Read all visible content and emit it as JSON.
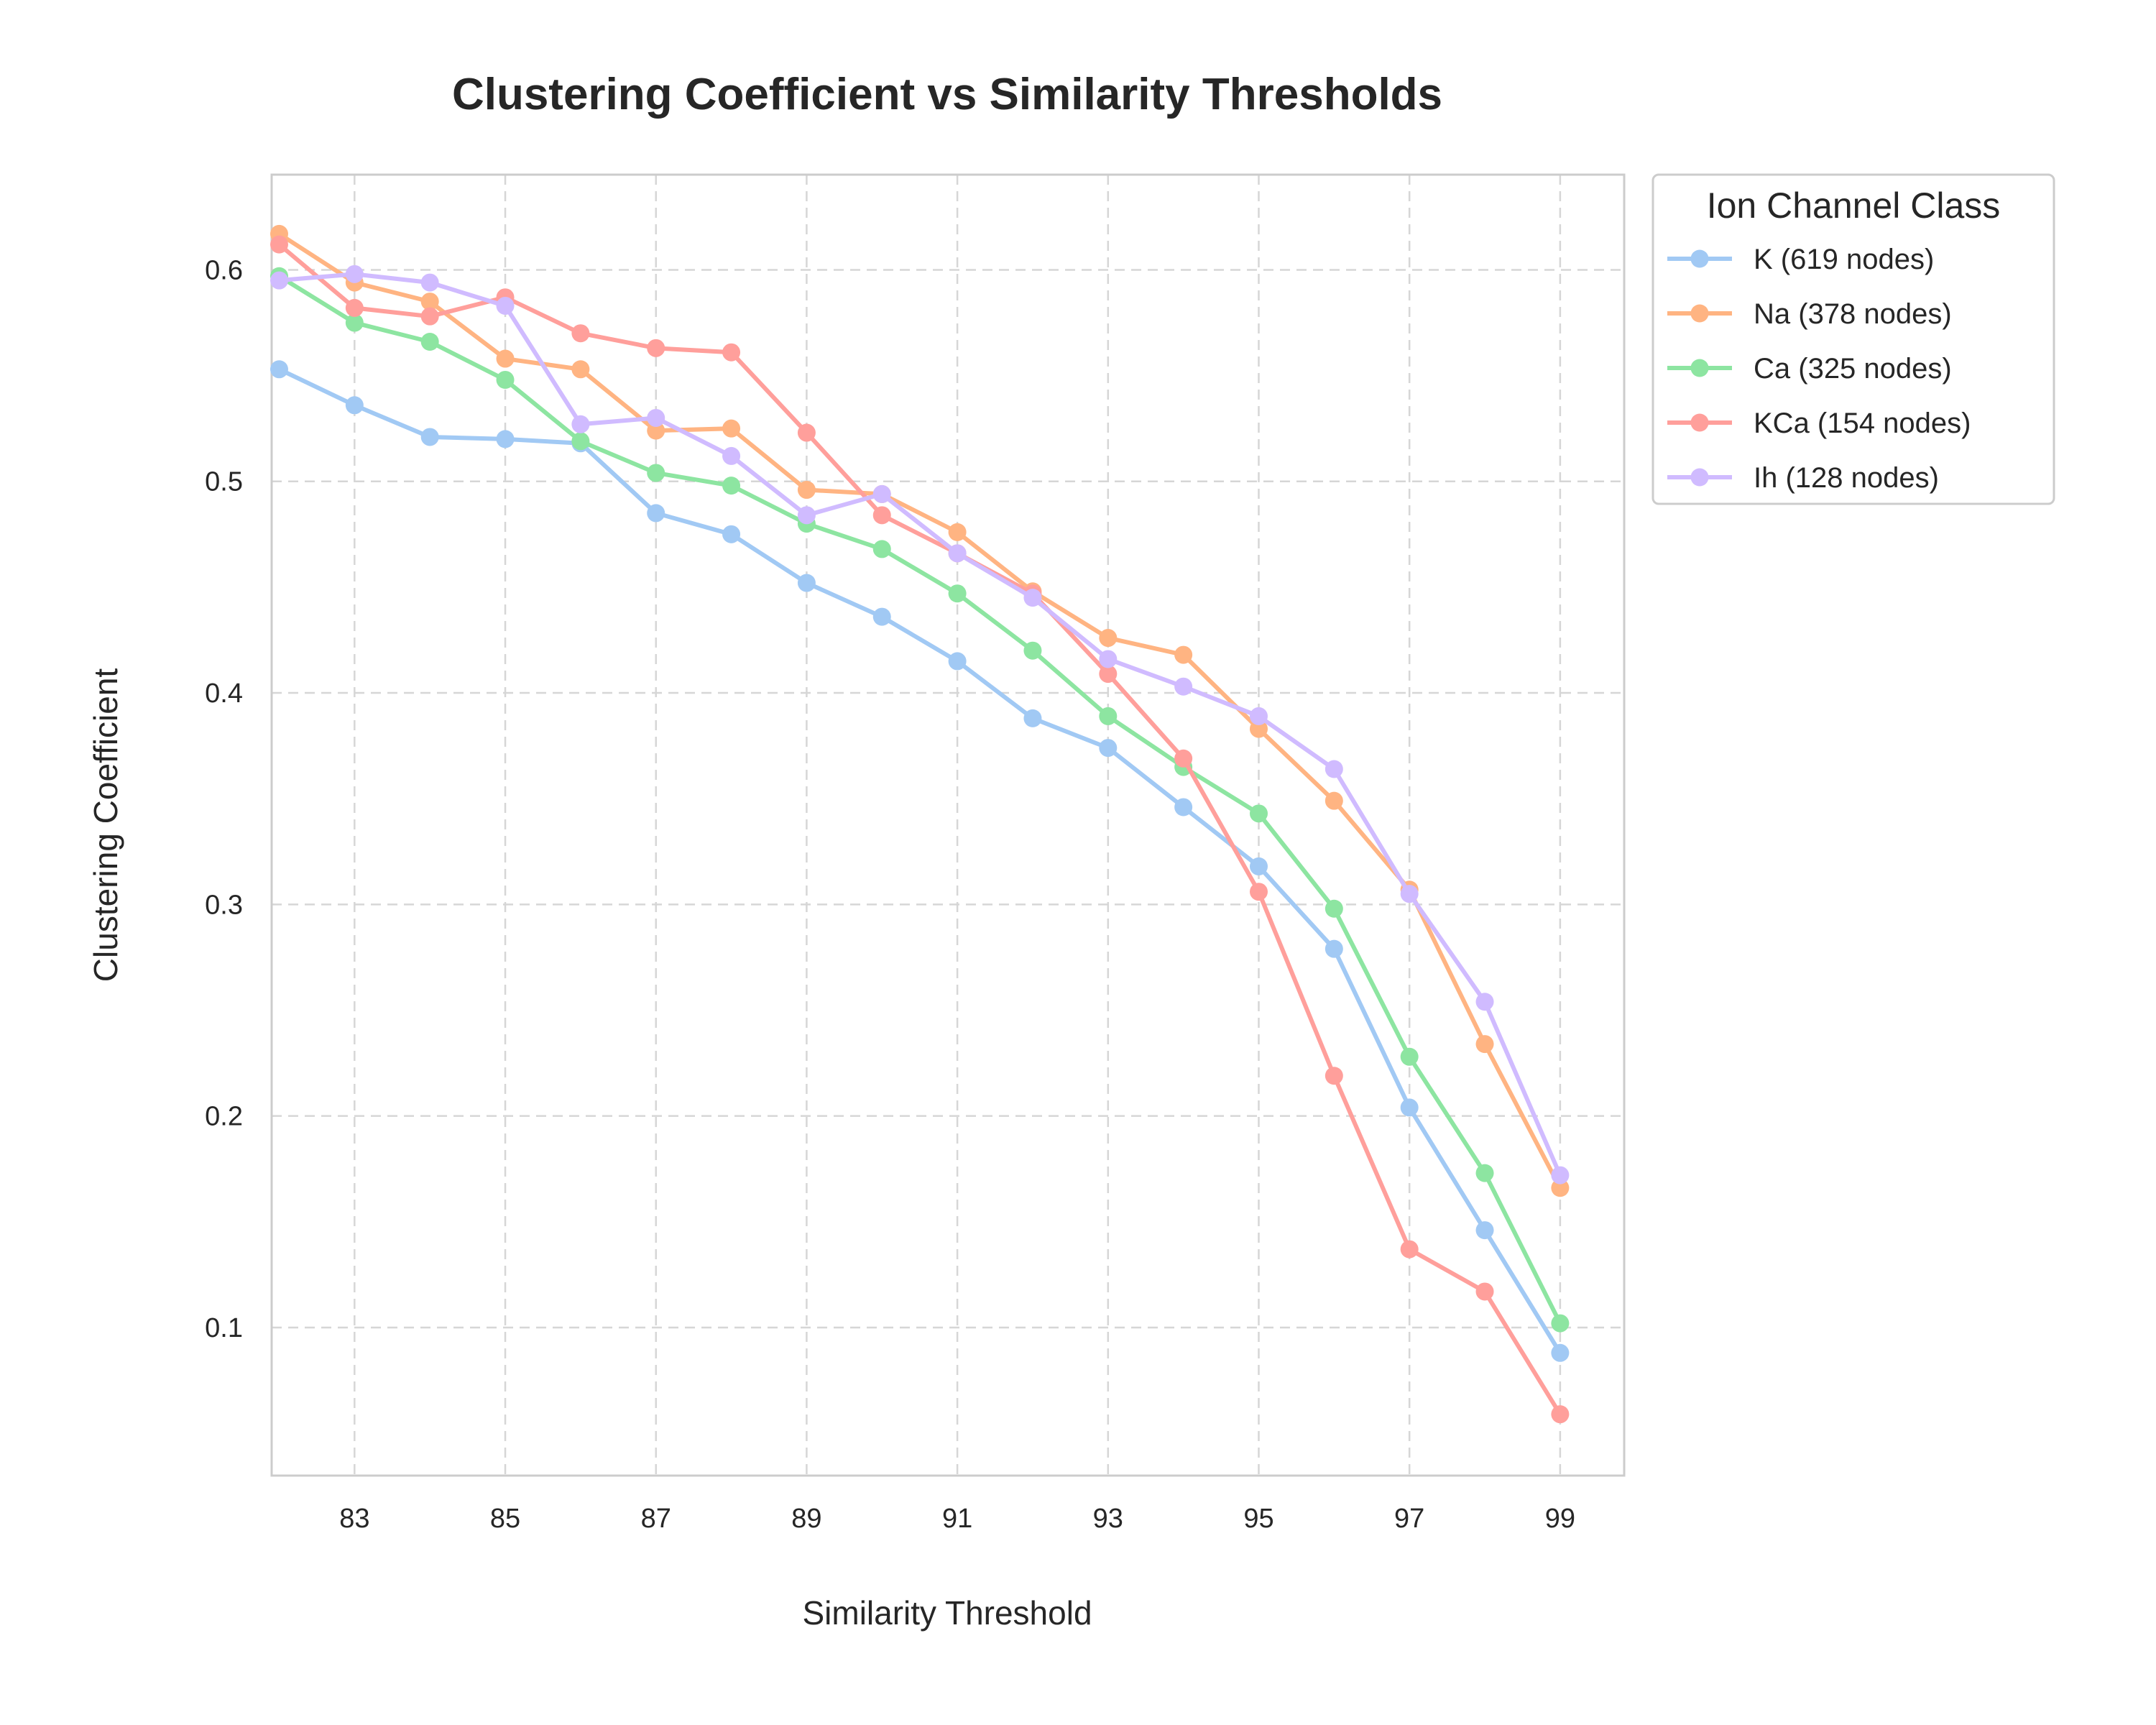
{
  "chart_data": {
    "type": "line",
    "title": "Clustering Coefficient vs Similarity Thresholds",
    "xlabel": "Similarity Threshold",
    "ylabel": "Clustering Coefficient",
    "xlim": [
      81.9,
      99.85
    ],
    "ylim": [
      0.03,
      0.645
    ],
    "xticks": [
      83,
      85,
      87,
      89,
      91,
      93,
      95,
      97,
      99
    ],
    "yticks": [
      0.1,
      0.2,
      0.3,
      0.4,
      0.5,
      0.6
    ],
    "ytick_labels": [
      "0.1",
      "0.2",
      "0.3",
      "0.4",
      "0.5",
      "0.6"
    ],
    "grid": true,
    "legend_title": "Ion Channel Class",
    "legend_position": "outside-top-right",
    "x": [
      82,
      83,
      84,
      85,
      86,
      87,
      88,
      89,
      90,
      91,
      92,
      93,
      94,
      95,
      96,
      97,
      98,
      99
    ],
    "series": [
      {
        "name": "K (619 nodes)",
        "color": "#a1c9f4",
        "values": [
          0.553,
          0.536,
          0.521,
          0.52,
          0.518,
          0.485,
          0.475,
          0.452,
          0.436,
          0.415,
          0.388,
          0.374,
          0.346,
          0.318,
          0.279,
          0.204,
          0.146,
          0.088
        ]
      },
      {
        "name": "Na (378 nodes)",
        "color": "#ffb482",
        "values": [
          0.617,
          0.594,
          0.585,
          0.558,
          0.553,
          0.524,
          0.525,
          0.496,
          0.494,
          0.476,
          0.448,
          0.426,
          0.418,
          0.383,
          0.349,
          0.307,
          0.234,
          0.166
        ]
      },
      {
        "name": "Ca (325 nodes)",
        "color": "#8de5a1",
        "values": [
          0.597,
          0.575,
          0.566,
          0.548,
          0.519,
          0.504,
          0.498,
          0.48,
          0.468,
          0.447,
          0.42,
          0.389,
          0.365,
          0.343,
          0.298,
          0.228,
          0.173,
          0.102
        ]
      },
      {
        "name": "KCa (154 nodes)",
        "color": "#ff9f9b",
        "values": [
          0.612,
          0.582,
          0.578,
          0.587,
          0.57,
          0.563,
          0.561,
          0.523,
          0.484,
          0.466,
          0.447,
          0.409,
          0.369,
          0.306,
          0.219,
          0.137,
          0.117,
          0.059
        ]
      },
      {
        "name": "Ih (128 nodes)",
        "color": "#d0bbff",
        "values": [
          0.595,
          0.598,
          0.594,
          0.583,
          0.527,
          0.53,
          0.512,
          0.484,
          0.494,
          0.466,
          0.445,
          0.416,
          0.403,
          0.389,
          0.364,
          0.305,
          0.254,
          0.172
        ]
      }
    ]
  }
}
